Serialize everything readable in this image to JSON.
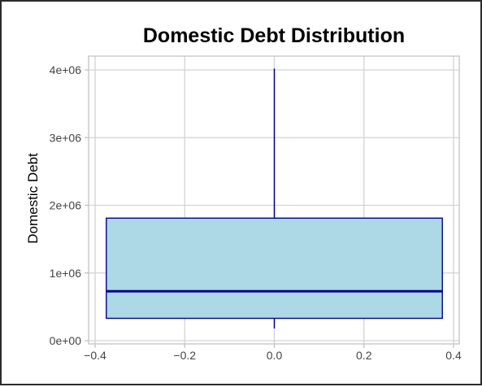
{
  "chart_data": {
    "type": "box",
    "title": "Domestic Debt Distribution",
    "xlabel": "",
    "ylabel": "Domestic Debt",
    "xlim": [
      -0.4,
      0.4
    ],
    "ylim": [
      0,
      4000000
    ],
    "x_ticks": [
      -0.4,
      -0.2,
      0.0,
      0.2,
      0.4
    ],
    "x_tick_labels": [
      "−0.4",
      "−0.2",
      "0.0",
      "0.2",
      "0.4"
    ],
    "y_ticks": [
      0,
      1000000,
      2000000,
      3000000,
      4000000
    ],
    "y_tick_labels": [
      "0e+00",
      "1e+06",
      "2e+06",
      "3e+06",
      "4e+06"
    ],
    "grid": true,
    "box": {
      "x_left": -0.375,
      "x_right": 0.375,
      "x_center": 0.0,
      "whisker_low": 180000,
      "q1": 330000,
      "median": 730000,
      "q3": 1810000,
      "whisker_high": 4020000
    },
    "colors": {
      "box_fill": "#add8e6",
      "box_stroke": "#00008b",
      "grid": "#d3d3d3",
      "axis": "#bfbfbf"
    }
  }
}
